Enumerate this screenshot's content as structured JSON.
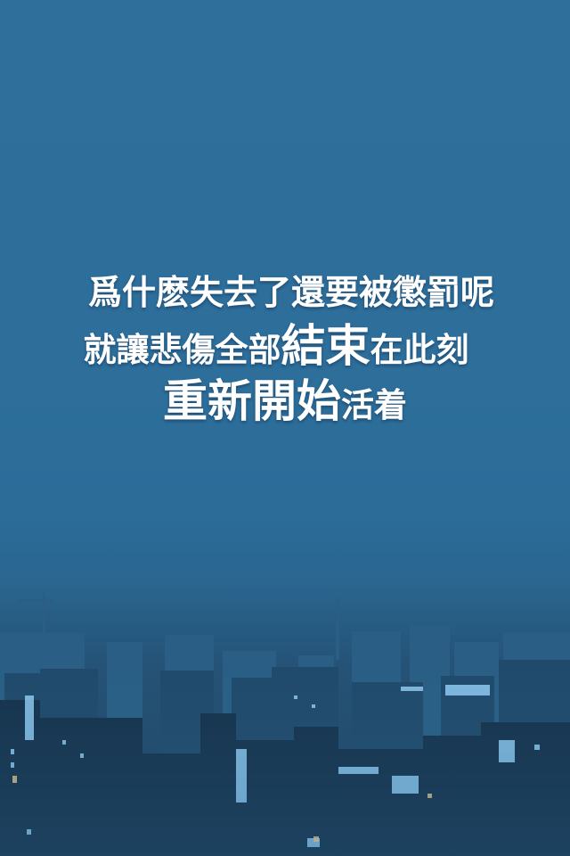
{
  "quote": {
    "line1": "爲什麽失去了還要被懲罰呢",
    "line2": {
      "a": "就讓悲傷全部",
      "b": "結束",
      "c": "在此刻"
    },
    "line3": {
      "a": "重新開始",
      "b": "活着"
    }
  },
  "colors": {
    "sky": "#2f6f9b",
    "text": "#ffffff",
    "night": "#1d3953"
  }
}
